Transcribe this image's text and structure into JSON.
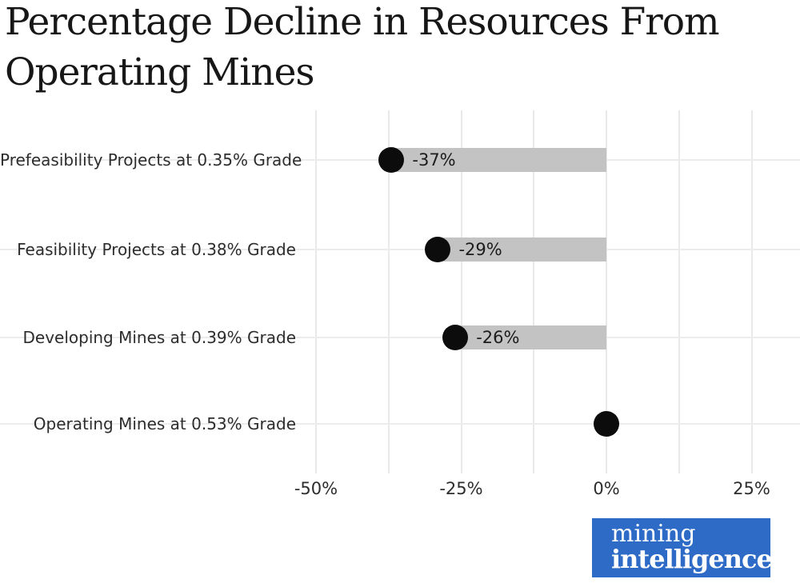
{
  "chart_data": {
    "type": "bar",
    "orientation": "horizontal",
    "title": "Percentage Decline in Resources From Operating Mines",
    "title_lines": [
      "Percentage Decline in Resources From",
      "Operating Mines"
    ],
    "categories": [
      "Prefeasibility Projects at 0.35% Grade",
      "Feasibility Projects at 0.38% Grade",
      "Developing Mines at 0.39% Grade",
      "Operating Mines at 0.53% Grade"
    ],
    "values": [
      -37,
      -29,
      -26,
      0
    ],
    "bar_labels": [
      "-37%",
      "-29%",
      "-26%",
      ""
    ],
    "xlabel": "",
    "ylabel": "",
    "x_ticks": [
      {
        "label": "-50%",
        "value": -50
      },
      {
        "label": "-25%",
        "value": -25
      },
      {
        "label": "0%",
        "value": 0
      },
      {
        "label": "25%",
        "value": 25
      }
    ],
    "x_gridline_values": [
      -50,
      -37.5,
      -25,
      -12.5,
      0,
      12.5,
      25
    ],
    "xlim": [
      -57.5,
      33.5
    ],
    "grid": true,
    "legend": false,
    "colors": {
      "bar": "#c3c3c3",
      "dot": "#0c0c0c",
      "gridline": "#e9e9e9",
      "title_text": "#171717",
      "label_text": "#2d2d2d",
      "logo_background": "#2e6bc7",
      "logo_text": "#ffffff"
    }
  },
  "logo": {
    "line1": "mining",
    "line2": "intelligence"
  }
}
